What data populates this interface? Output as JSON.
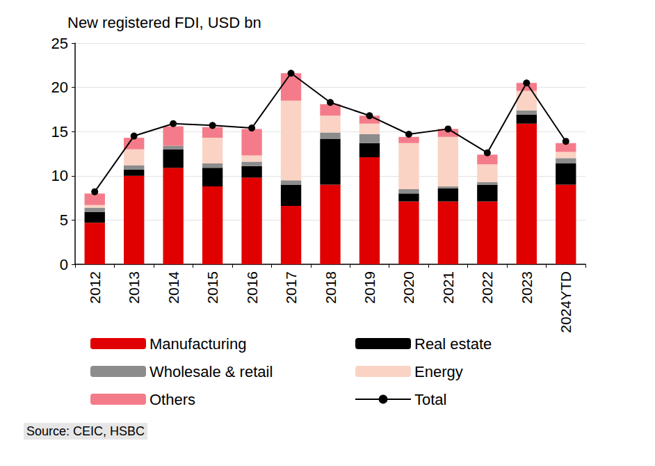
{
  "chart_data": {
    "type": "bar",
    "title": "New registered FDI, USD bn",
    "source": "Source: CEIC, HSBC",
    "categories": [
      "2012",
      "2013",
      "2014",
      "2015",
      "2016",
      "2017",
      "2018",
      "2019",
      "2020",
      "2021",
      "2022",
      "2023",
      "2024YTD"
    ],
    "stacked": true,
    "grid": true,
    "legend": "bottom",
    "ylim": [
      0,
      25
    ],
    "yticks": [
      0,
      5,
      10,
      15,
      20,
      25
    ],
    "series": [
      {
        "name": "Manufacturing",
        "type": "bar",
        "color": "#e00000",
        "values": [
          4.7,
          10.0,
          10.9,
          8.8,
          9.8,
          6.6,
          9.0,
          12.1,
          7.1,
          7.1,
          7.1,
          15.9,
          9.0
        ]
      },
      {
        "name": "Real estate",
        "type": "bar",
        "color": "#000000",
        "values": [
          1.2,
          0.7,
          2.1,
          2.1,
          1.3,
          2.4,
          5.2,
          1.6,
          0.9,
          1.5,
          1.9,
          1.0,
          2.4
        ]
      },
      {
        "name": "Wholesale & retail",
        "type": "bar",
        "color": "#8c8c8c",
        "values": [
          0.5,
          0.5,
          0.4,
          0.5,
          0.5,
          0.5,
          0.7,
          1.0,
          0.5,
          0.2,
          0.3,
          0.5,
          0.6
        ]
      },
      {
        "name": "Energy",
        "type": "bar",
        "color": "#fad3c4",
        "values": [
          0.3,
          1.8,
          0.0,
          2.9,
          0.7,
          9.0,
          1.9,
          1.2,
          5.2,
          5.6,
          2.0,
          2.2,
          0.7
        ]
      },
      {
        "name": "Others",
        "type": "bar",
        "color": "#f47c8a",
        "values": [
          1.3,
          1.3,
          2.2,
          1.2,
          3.0,
          3.1,
          1.3,
          0.9,
          0.7,
          0.9,
          1.1,
          0.9,
          1.0
        ]
      },
      {
        "name": "Total",
        "type": "line",
        "color": "#000000",
        "marker": "circle",
        "values": [
          8.2,
          14.5,
          15.9,
          15.7,
          15.4,
          21.6,
          18.3,
          16.8,
          14.7,
          15.3,
          12.6,
          20.5,
          13.9
        ]
      }
    ]
  }
}
